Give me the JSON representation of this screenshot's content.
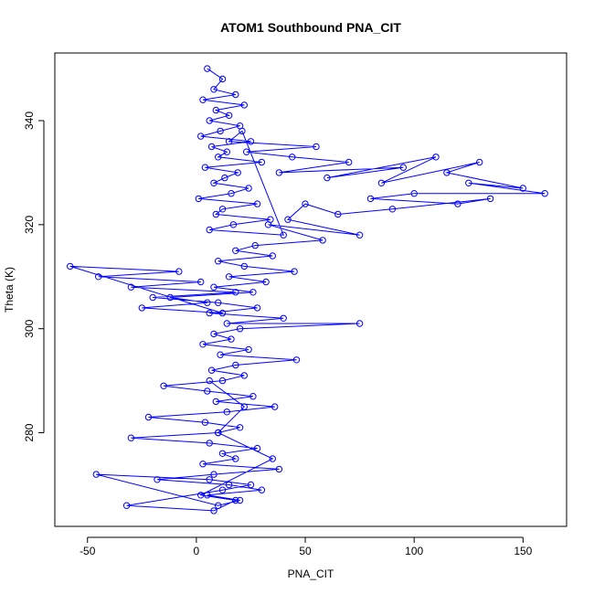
{
  "chart_data": {
    "type": "scatter",
    "mode": "points-and-lines",
    "title": "ATOM1 Southbound PNA_CIT",
    "xlabel": "PNA_CIT",
    "ylabel": "Theta (K)",
    "xlim": [
      -65,
      170
    ],
    "ylim": [
      262,
      353
    ],
    "xticks": [
      -50,
      0,
      50,
      100,
      150
    ],
    "yticks": [
      280,
      300,
      320,
      340
    ],
    "grid": false,
    "legend": "none",
    "color": "#0000ff",
    "marker": "open-circle",
    "series": [
      {
        "x": [
          5,
          12,
          8,
          18,
          3,
          22,
          9,
          15,
          6,
          20,
          11,
          2,
          25,
          7,
          14,
          10,
          30,
          4,
          19,
          13,
          8,
          24,
          16,
          1,
          28,
          12,
          9,
          34,
          17,
          6,
          40,
          21,
          15,
          55,
          23,
          44,
          70,
          38,
          95,
          60,
          110,
          85,
          130,
          115,
          150,
          125,
          160,
          100,
          80,
          120,
          135,
          90,
          65,
          50,
          42,
          75,
          33,
          58,
          27,
          18,
          35,
          10,
          22,
          45,
          15,
          32,
          8,
          26,
          -12,
          5,
          -25,
          12,
          -58,
          -8,
          -45,
          2,
          -30,
          18,
          -20,
          10,
          28,
          6,
          40,
          14,
          75,
          20,
          8,
          16,
          3,
          24,
          11,
          46,
          18,
          7,
          22,
          12,
          -15,
          5,
          26,
          9,
          36,
          14,
          -22,
          4,
          20,
          10,
          -30,
          6,
          28,
          12,
          18,
          3,
          38,
          8,
          -18,
          15,
          30,
          5,
          20,
          10,
          -46,
          6,
          25,
          12,
          -32,
          8,
          18,
          2,
          35,
          10,
          22,
          6
        ],
        "y": [
          350,
          348,
          346,
          345,
          344,
          343,
          342,
          341,
          340,
          339,
          338,
          337,
          336,
          335,
          334,
          333,
          332,
          331,
          330,
          329,
          328,
          327,
          326,
          325,
          324,
          323,
          322,
          321,
          320,
          319,
          318,
          338,
          336,
          335,
          334,
          333,
          332,
          330,
          331,
          329,
          333,
          328,
          332,
          330,
          327,
          328,
          326,
          326,
          325,
          324,
          325,
          323,
          322,
          324,
          321,
          318,
          320,
          317,
          316,
          315,
          314,
          313,
          312,
          311,
          310,
          309,
          308,
          307,
          306,
          305,
          304,
          303,
          312,
          311,
          310,
          309,
          308,
          307,
          306,
          305,
          304,
          303,
          302,
          301,
          301,
          300,
          299,
          298,
          297,
          296,
          295,
          294,
          293,
          292,
          291,
          290,
          289,
          288,
          287,
          286,
          285,
          284,
          283,
          282,
          281,
          280,
          279,
          278,
          277,
          276,
          275,
          274,
          273,
          272,
          271,
          270,
          269,
          268,
          267,
          266,
          272,
          271,
          270,
          269,
          266,
          265,
          267,
          268,
          275,
          280,
          285,
          290
        ]
      }
    ]
  }
}
